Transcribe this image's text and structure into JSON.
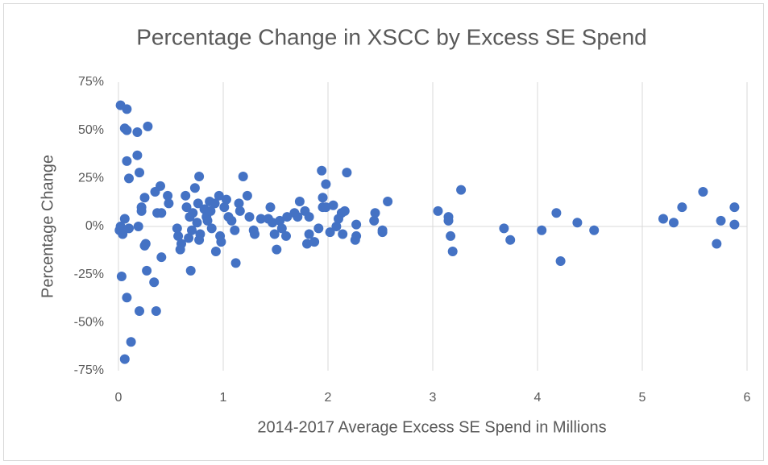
{
  "chart_data": {
    "type": "scatter",
    "title": "Percentage Change in XSCC by Excess SE Spend",
    "xlabel": "2014-2017 Average Excess SE Spend in Millions",
    "ylabel": "Percentage Change",
    "color": "#4472c4",
    "grid": "x",
    "xlim": [
      0,
      6
    ],
    "xticks": [
      0,
      1,
      2,
      3,
      4,
      5,
      6
    ],
    "ylim": [
      -75,
      75
    ],
    "yticks": [
      {
        "value": -75,
        "label": "-75%"
      },
      {
        "value": -50,
        "label": "-50%"
      },
      {
        "value": -25,
        "label": "-25%"
      },
      {
        "value": 0,
        "label": "0%"
      },
      {
        "value": 25,
        "label": "25%"
      },
      {
        "value": 50,
        "label": "50%"
      },
      {
        "value": 75,
        "label": "75%"
      }
    ],
    "x": [
      0.02,
      0.08,
      0.06,
      0.08,
      0.18,
      0.28,
      0.18,
      0.08,
      0.2,
      0.1,
      0.02,
      0.01,
      0.04,
      0.06,
      0.1,
      0.19,
      0.22,
      0.22,
      0.25,
      0.26,
      0.25,
      0.27,
      0.35,
      0.4,
      0.37,
      0.41,
      0.34,
      0.41,
      0.2,
      0.36,
      0.03,
      0.08,
      0.12,
      0.06,
      0.47,
      0.48,
      0.56,
      0.57,
      0.6,
      0.59,
      0.64,
      0.65,
      0.68,
      0.67,
      0.7,
      0.71,
      0.69,
      0.73,
      0.77,
      0.76,
      0.75,
      0.77,
      0.78,
      0.82,
      0.84,
      0.85,
      0.87,
      0.88,
      0.89,
      0.92,
      0.93,
      0.96,
      0.97,
      0.98,
      1.01,
      1.03,
      1.05,
      1.08,
      1.11,
      1.12,
      1.15,
      1.16,
      1.19,
      1.23,
      1.25,
      1.29,
      1.3,
      1.36,
      1.43,
      1.45,
      1.47,
      1.49,
      1.51,
      1.54,
      1.56,
      1.6,
      1.61,
      1.68,
      1.71,
      1.73,
      1.78,
      1.8,
      1.82,
      1.82,
      1.87,
      1.91,
      1.94,
      1.95,
      1.95,
      1.98,
      1.98,
      2.02,
      2.05,
      2.08,
      2.1,
      2.13,
      2.16,
      2.14,
      2.18,
      2.27,
      2.27,
      2.26,
      2.44,
      2.45,
      2.52,
      2.52,
      2.57,
      3.05,
      3.15,
      3.15,
      3.17,
      3.19,
      3.27,
      3.68,
      3.74,
      4.04,
      4.18,
      4.22,
      4.38,
      4.54,
      5.2,
      5.3,
      5.38,
      5.58,
      5.71,
      5.75,
      5.88,
      5.88
    ],
    "values": [
      63,
      61,
      51,
      50,
      49,
      52,
      37,
      34,
      28,
      25,
      0,
      -2,
      -4,
      4,
      -1,
      0,
      8,
      10,
      15,
      -9,
      -10,
      -23,
      18,
      21,
      7,
      7,
      -29,
      -16,
      -44,
      -44,
      -26,
      -37,
      -60,
      -69,
      16,
      12,
      -1,
      -5,
      -9,
      -12,
      16,
      10,
      5,
      -6,
      -2,
      7,
      -23,
      20,
      26,
      12,
      2,
      -7,
      -4,
      9,
      5,
      3,
      13,
      8,
      -1,
      12,
      -13,
      16,
      -5,
      -8,
      10,
      14,
      5,
      3,
      -2,
      -19,
      12,
      8,
      26,
      16,
      5,
      -2,
      -4,
      4,
      4,
      10,
      2,
      -4,
      -12,
      3,
      -1,
      -5,
      5,
      7,
      5,
      13,
      8,
      -9,
      -4,
      5,
      -8,
      -1,
      29,
      15,
      10,
      22,
      10,
      -3,
      11,
      0,
      4,
      7,
      8,
      -4,
      28,
      1,
      -5,
      -7,
      3,
      7,
      -3,
      -2,
      13,
      8,
      5,
      3,
      -5,
      -13,
      19,
      -1,
      -7,
      -2,
      7,
      -18,
      2,
      -2,
      4,
      2,
      10,
      18,
      -9,
      3,
      10,
      1
    ]
  }
}
